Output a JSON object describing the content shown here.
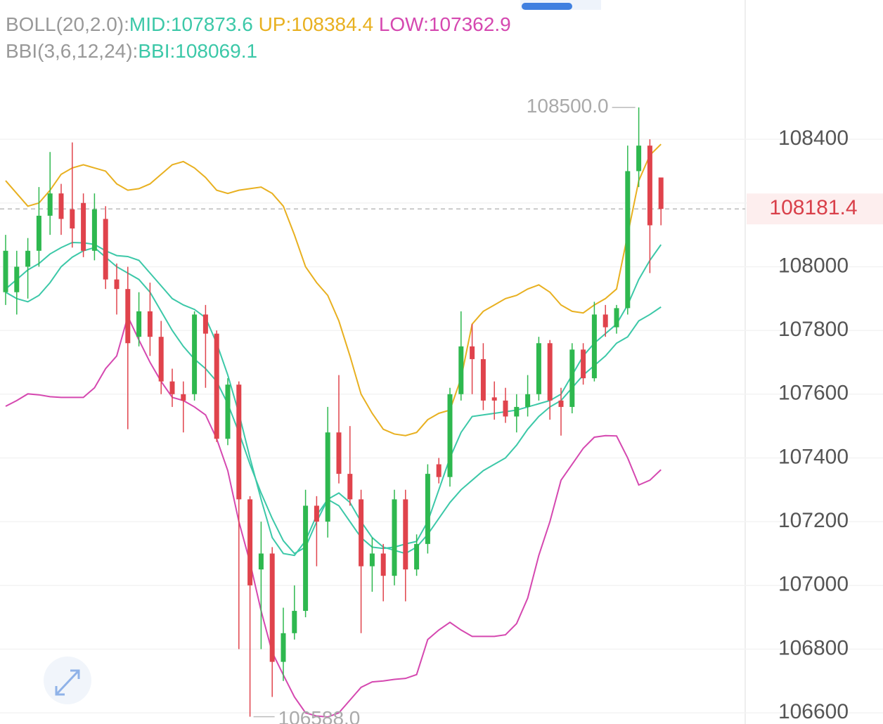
{
  "chart_data": {
    "type": "candlestick",
    "up_color": "#2eb84f",
    "down_color": "#e0434c",
    "ylim": [
      106565,
      108837
    ],
    "yticks": [
      106600,
      106800,
      107000,
      107200,
      107400,
      107600,
      107800,
      108000,
      108200,
      108400
    ],
    "ytick_labels_shown": [
      106600,
      106800,
      107000,
      107200,
      107400,
      107600,
      107800,
      108000,
      108400
    ],
    "grid": true,
    "current_price": 108181.4,
    "max_label": 108500.0,
    "max_label_text": "108500.0",
    "min_label": 106588.0,
    "min_label_text": "106588.0",
    "open": [
      107920,
      107920,
      108000,
      108050,
      108160,
      108230,
      108180,
      108200,
      108050,
      108150,
      107960,
      107930,
      107780,
      107860,
      107780,
      107640,
      107600,
      107600,
      107850,
      107790,
      107460,
      107630,
      107270,
      107050,
      107100,
      106760,
      106850,
      106920,
      107250,
      107200,
      107480,
      107350,
      107270,
      107060,
      107100,
      107030,
      107270,
      107050,
      107130,
      107380,
      107340,
      107600,
      107750,
      107710,
      107590,
      107580,
      107530,
      107560,
      107600,
      107760,
      107580,
      107560,
      107740,
      107650,
      107850,
      107810,
      107870,
      108300,
      108380,
      108280
    ],
    "high": [
      108100,
      108050,
      108090,
      108250,
      108360,
      108260,
      108390,
      108230,
      108230,
      108190,
      108010,
      108000,
      107920,
      107950,
      107830,
      107680,
      107640,
      107860,
      107880,
      107800,
      107650,
      107640,
      107280,
      107200,
      107120,
      106930,
      107000,
      107300,
      107280,
      107560,
      107660,
      107500,
      107300,
      107150,
      107130,
      107300,
      107300,
      107160,
      107380,
      107400,
      107620,
      107860,
      107820,
      107760,
      107640,
      107620,
      107600,
      107660,
      107780,
      107770,
      107620,
      107760,
      107760,
      107890,
      107880,
      107880,
      108380,
      108500,
      108400,
      108280
    ],
    "low": [
      107880,
      107850,
      107900,
      108000,
      108100,
      108100,
      108060,
      108030,
      108020,
      107930,
      107850,
      107490,
      107750,
      107720,
      107600,
      107560,
      107480,
      107580,
      107620,
      107450,
      107440,
      106800,
      106588,
      106800,
      106650,
      106700,
      106830,
      106900,
      107060,
      107150,
      107320,
      107250,
      106850,
      106980,
      106950,
      107000,
      106950,
      107030,
      107100,
      107320,
      107310,
      107580,
      107600,
      107550,
      107520,
      107510,
      107480,
      107530,
      107580,
      107520,
      107470,
      107540,
      107630,
      107640,
      107780,
      107790,
      107850,
      108250,
      107980,
      108130
    ],
    "close": [
      108050,
      108000,
      108050,
      108160,
      108230,
      108150,
      108120,
      108050,
      108180,
      107960,
      107930,
      107760,
      107860,
      107780,
      107640,
      107600,
      107580,
      107850,
      107790,
      107460,
      107630,
      107270,
      107000,
      107100,
      106760,
      106850,
      106920,
      107250,
      107200,
      107480,
      107350,
      107270,
      107060,
      107100,
      107030,
      107270,
      107050,
      107130,
      107350,
      107340,
      107600,
      107750,
      107710,
      107580,
      107580,
      107530,
      107560,
      107600,
      107760,
      107580,
      107560,
      107740,
      107650,
      107850,
      107810,
      107870,
      108300,
      108380,
      108130,
      108181.4
    ],
    "indicators": [
      {
        "label": "BOLL(20,2.0):",
        "series": [
          {
            "name": "MID:",
            "color": "#3cc8a8",
            "last": 107873.6,
            "values": [
              107920,
              107900,
              107890,
              107910,
              107950,
              108000,
              108030,
              108050,
              108060,
              108030,
              108000,
              107980,
              107960,
              107920,
              107860,
              107800,
              107750,
              107710,
              107680,
              107640,
              107570,
              107480,
              107380,
              107290,
              107210,
              107140,
              107100,
              107120,
              107200,
              107270,
              107290,
              107260,
              107200,
              107150,
              107120,
              107110,
              107100,
              107120,
              107160,
              107210,
              107260,
              107300,
              107330,
              107360,
              107380,
              107400,
              107440,
              107490,
              107530,
              107560,
              107580,
              107620,
              107660,
              107690,
              107720,
              107760,
              107780,
              107830,
              107850,
              107873.6
            ]
          },
          {
            "name": "UP:",
            "color": "#e8b020",
            "last": 108384.4,
            "values": [
              108270,
              108230,
              108190,
              108200,
              108240,
              108290,
              108310,
              108320,
              108310,
              108300,
              108260,
              108240,
              108245,
              108260,
              108290,
              108320,
              108330,
              108310,
              108280,
              108240,
              108230,
              108240,
              108245,
              108250,
              108230,
              108190,
              108100,
              108000,
              107950,
              107910,
              107830,
              107720,
              107600,
              107540,
              107490,
              107475,
              107470,
              107480,
              107520,
              107540,
              107550,
              107650,
              107820,
              107860,
              107880,
              107900,
              107910,
              107930,
              107943,
              107920,
              107880,
              107860,
              107855,
              107880,
              107900,
              107930,
              108100,
              108270,
              108350,
              108384.4
            ]
          },
          {
            "name": "LOW:",
            "color": "#d548b0",
            "last": 107362.9,
            "values": [
              107562,
              107580,
              107601,
              107598,
              107592,
              107590,
              107590,
              107590,
              107620,
              107680,
              107720,
              107844,
              107770,
              107700,
              107640,
              107590,
              107580,
              107560,
              107535,
              107460,
              107360,
              107200,
              107072,
              106920,
              106790,
              106719,
              106650,
              106600,
              106590,
              106587,
              106600,
              106640,
              106680,
              106697,
              106700,
              106705,
              106708,
              106720,
              106830,
              106860,
              106884,
              106860,
              106840,
              106840,
              106840,
              106845,
              106880,
              106960,
              107094,
              107200,
              107330,
              107380,
              107430,
              107465,
              107470,
              107469,
              107400,
              107315,
              107330,
              107362.9
            ]
          }
        ]
      },
      {
        "label": "BBI(3,6,12,24):",
        "series": [
          {
            "name": "BBI:",
            "color": "#3cc8a8",
            "last": 108069.1,
            "values": [
              107930,
              107960,
              107990,
              108010,
              108040,
              108060,
              108076,
              108075,
              108070,
              108050,
              108035,
              108032,
              108020,
              107980,
              107940,
              107900,
              107880,
              107866,
              107840,
              107760,
              107660,
              107540,
              107400,
              107270,
              107150,
              107100,
              107094,
              107140,
              107220,
              107270,
              107250,
              107200,
              107150,
              107120,
              107116,
              107120,
              107130,
              107138,
              107200,
              107300,
              107400,
              107480,
              107530,
              107535,
              107540,
              107545,
              107550,
              107560,
              107570,
              107580,
              107600,
              107660,
              107720,
              107760,
              107790,
              107820,
              107880,
              107960,
              108020,
              108069.1
            ]
          }
        ]
      }
    ]
  }
}
